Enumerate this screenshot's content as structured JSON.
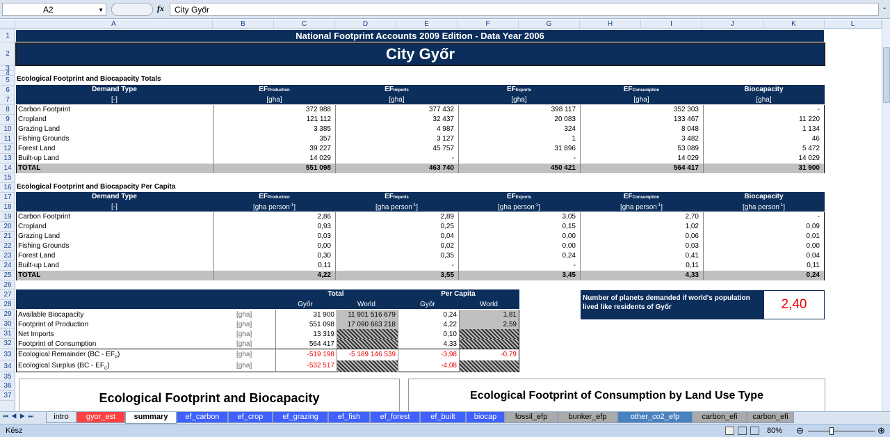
{
  "formula_bar": {
    "cell_ref": "A2",
    "fx": "fx",
    "value": "City Győr"
  },
  "columns": [
    "A",
    "B",
    "C",
    "D",
    "E",
    "F",
    "G",
    "H",
    "I",
    "J",
    "K",
    "L"
  ],
  "rows": [
    "1",
    "2",
    "3",
    "4",
    "5",
    "6",
    "7",
    "8",
    "9",
    "10",
    "11",
    "12",
    "13",
    "14",
    "15",
    "16",
    "17",
    "18",
    "19",
    "20",
    "21",
    "22",
    "23",
    "24",
    "25",
    "26",
    "27",
    "28",
    "29",
    "30",
    "31",
    "32",
    "33",
    "34",
    "35",
    "36",
    "37"
  ],
  "title": "National Footprint Accounts 2009 Edition - Data Year 2006",
  "city": "City Győr",
  "totals": {
    "heading": "Ecological Footprint and Biocapacity Totals",
    "demand_type": "Demand Type",
    "demand_unit": "[-]",
    "ef": "EF",
    "sub_prod": "Production",
    "sub_imp": "Imports",
    "sub_exp": "Exports",
    "sub_cons": "Consumption",
    "biocap": "Biocapacity",
    "unit": "[gha]",
    "rows": [
      [
        "Carbon Footprint",
        "372 988",
        "377 432",
        "398 117",
        "352 303",
        "-"
      ],
      [
        "Cropland",
        "121 112",
        "32 437",
        "20 083",
        "133 467",
        "11 220"
      ],
      [
        "Grazing Land",
        "3 385",
        "4 987",
        "324",
        "8 048",
        "1 134"
      ],
      [
        "Fishing Grounds",
        "357",
        "3 127",
        "1",
        "3 482",
        "46"
      ],
      [
        "Forest Land",
        "39 227",
        "45 757",
        "31 896",
        "53 089",
        "5 472"
      ],
      [
        "Built-up Land",
        "14 029",
        "-",
        "-",
        "14 029",
        "14 029"
      ]
    ],
    "total": [
      "TOTAL",
      "551 098",
      "463 740",
      "450 421",
      "564 417",
      "31 900"
    ]
  },
  "percap": {
    "heading": "Ecological Footprint and Biocapacity Per Capita",
    "unit": "[gha person",
    "unit_sup": "-1",
    "unit_close": "]",
    "rows": [
      [
        "Carbon Footprint",
        "2,86",
        "2,89",
        "3,05",
        "2,70",
        "-"
      ],
      [
        "Cropland",
        "0,93",
        "0,25",
        "0,15",
        "1,02",
        "0,09"
      ],
      [
        "Grazing Land",
        "0,03",
        "0,04",
        "0,00",
        "0,06",
        "0,01"
      ],
      [
        "Fishing Grounds",
        "0,00",
        "0,02",
        "0,00",
        "0,03",
        "0,00"
      ],
      [
        "Forest Land",
        "0,30",
        "0,35",
        "0,24",
        "0,41",
        "0,04"
      ],
      [
        "Built-up Land",
        "0,11",
        "-",
        "-",
        "0,11",
        "0,11"
      ]
    ],
    "total": [
      "TOTAL",
      "4,22",
      "3,55",
      "3,45",
      "4,33",
      "0,24"
    ]
  },
  "summary": {
    "total": "Total",
    "per_capita": "Per Capita",
    "city": "Győr",
    "world": "World",
    "rows": [
      {
        "label": "Available Biocapacity",
        "unit": "[gha]",
        "city": "31 900",
        "world": "11 901 516 679",
        "pc_city": "0,24",
        "pc_world": "1,81"
      },
      {
        "label": "Footprint of Production",
        "unit": "[gha]",
        "city": "551 098",
        "world": "17 090 663 218",
        "pc_city": "4,22",
        "pc_world": "2,59"
      },
      {
        "label": "Net Imports",
        "unit": "[gha]",
        "city": "13 319",
        "world": "",
        "pc_city": "0,10",
        "pc_world": ""
      },
      {
        "label": "Footprint of Consumption",
        "unit": "[gha]",
        "city": "564 417",
        "world": "",
        "pc_city": "4,33",
        "pc_world": ""
      },
      {
        "label": "Ecological Remainder (BC - EF",
        "sub": "P",
        "close": ")",
        "unit": "[gha]",
        "city": "-519 198",
        "world": "-5 189 146 539",
        "pc_city": "-3,98",
        "pc_world": "-0,79"
      },
      {
        "label": "Ecological Surplus (BC - EF",
        "sub": "C",
        "close": ")",
        "unit": "[gha]",
        "city": "-532 517",
        "world": "",
        "pc_city": "-4,08",
        "pc_world": ""
      }
    ],
    "planets_label": "Number of planets demanded if world's population lived like residents of Győr",
    "planets_value": "2,40"
  },
  "chart_titles": [
    "Ecological Footprint and Biocapacity",
    "Ecological Footprint of Consumption by Land Use Type"
  ],
  "tabs": [
    "intro",
    "gyor_est",
    "summary",
    "ef_carbon",
    "ef_crop",
    "ef_grazing",
    "ef_fish",
    "ef_forest",
    "ef_built",
    "biocap",
    "fossil_efp",
    "bunker_efp",
    "other_co2_efp",
    "carbon_efi",
    "carbon_efi"
  ],
  "tab_colors": [
    "#e1e9f4",
    "#ff4040",
    "#ffffff",
    "#4060ff",
    "#4060ff",
    "#4060ff",
    "#4060ff",
    "#4060ff",
    "#4060ff",
    "#4060ff",
    "#aaaaaa",
    "#aaaaaa",
    "#4a82c0",
    "#aaaaaa",
    "#aaaaaa"
  ],
  "status": {
    "ready": "Kész",
    "zoom": "80%"
  }
}
